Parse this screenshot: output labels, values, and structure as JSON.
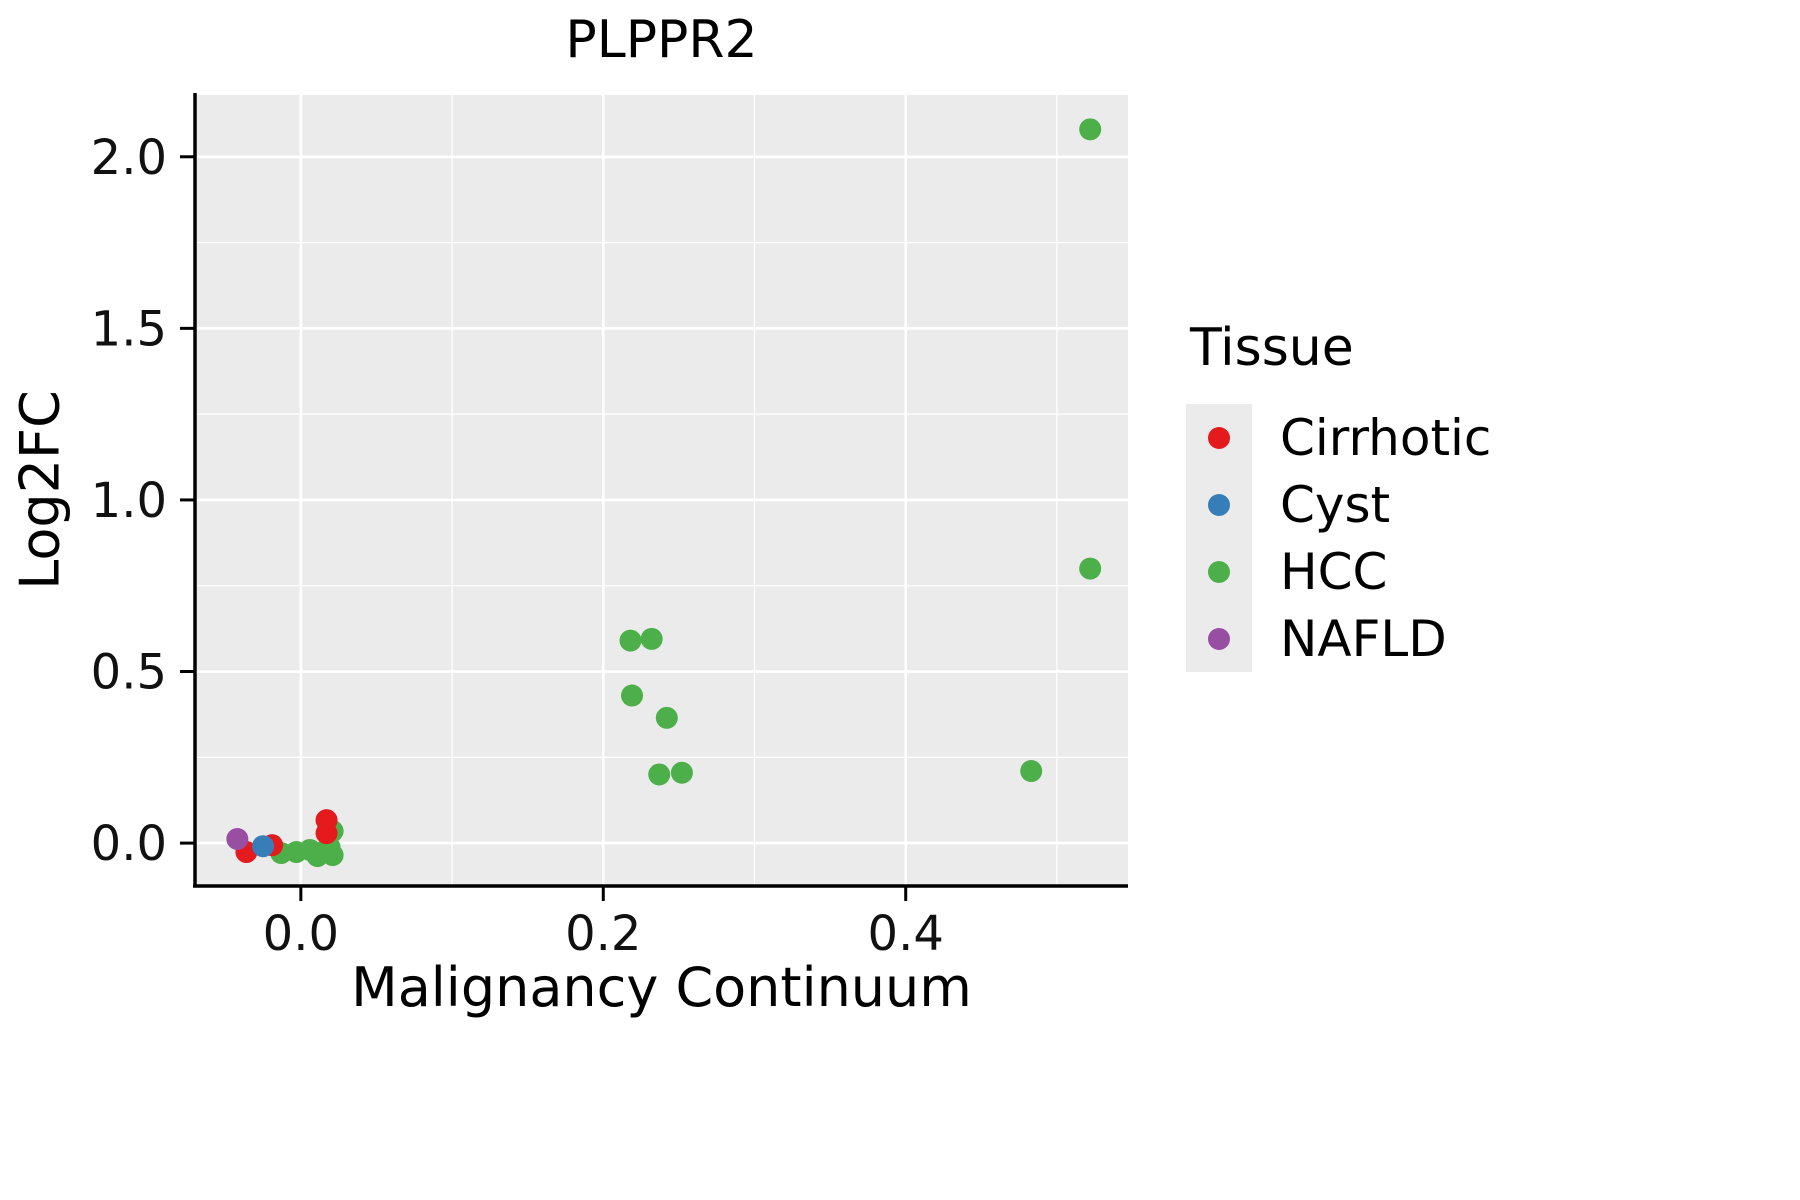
{
  "chart_data": {
    "type": "scatter",
    "title": "PLPPR2",
    "xlabel": "Malignancy Continuum",
    "ylabel": "Log2FC",
    "xlim": [
      -0.07,
      0.547
    ],
    "ylim": [
      -0.125,
      2.18
    ],
    "x_ticks": [
      0.0,
      0.2,
      0.4
    ],
    "x_tick_labels": [
      "0.0",
      "0.2",
      "0.4"
    ],
    "y_ticks": [
      0.0,
      0.5,
      1.0,
      1.5,
      2.0
    ],
    "y_tick_labels": [
      "0.0",
      "0.5",
      "1.0",
      "1.5",
      "2.0"
    ],
    "x_minor_ticks": [
      0.1,
      0.3,
      0.5
    ],
    "y_minor_ticks": [
      0.25,
      0.75,
      1.25,
      1.75
    ],
    "grid": true,
    "panel_bg": "#EBEBEB",
    "grid_color": "#FFFFFF",
    "axis_color": "#000000",
    "legend": {
      "title": "Tissue",
      "position": "right",
      "items": [
        {
          "label": "Cirrhotic",
          "color": "#E41A1C"
        },
        {
          "label": "Cyst",
          "color": "#377EB8"
        },
        {
          "label": "HCC",
          "color": "#4DAF4A"
        },
        {
          "label": "NAFLD",
          "color": "#984EA3"
        }
      ]
    },
    "series": [
      {
        "name": "HCC",
        "color": "#4DAF4A",
        "points": [
          [
            -0.013,
            -0.029
          ],
          [
            -0.003,
            -0.026
          ],
          [
            0.006,
            -0.02
          ],
          [
            0.011,
            -0.038
          ],
          [
            0.016,
            -0.022
          ],
          [
            0.019,
            -0.012
          ],
          [
            0.021,
            -0.035
          ],
          [
            0.021,
            0.035
          ],
          [
            0.218,
            0.59
          ],
          [
            0.232,
            0.595
          ],
          [
            0.219,
            0.43
          ],
          [
            0.242,
            0.365
          ],
          [
            0.237,
            0.2
          ],
          [
            0.252,
            0.205
          ],
          [
            0.483,
            0.21
          ],
          [
            0.522,
            0.8
          ],
          [
            0.522,
            2.08
          ]
        ]
      },
      {
        "name": "Cirrhotic",
        "color": "#E41A1C",
        "points": [
          [
            -0.036,
            -0.026
          ],
          [
            -0.019,
            -0.006
          ],
          [
            0.017,
            0.067
          ],
          [
            0.017,
            0.029
          ]
        ]
      },
      {
        "name": "Cyst",
        "color": "#377EB8",
        "points": [
          [
            -0.025,
            -0.009
          ]
        ]
      },
      {
        "name": "NAFLD",
        "color": "#984EA3",
        "points": [
          [
            -0.042,
            0.012
          ]
        ]
      }
    ]
  }
}
